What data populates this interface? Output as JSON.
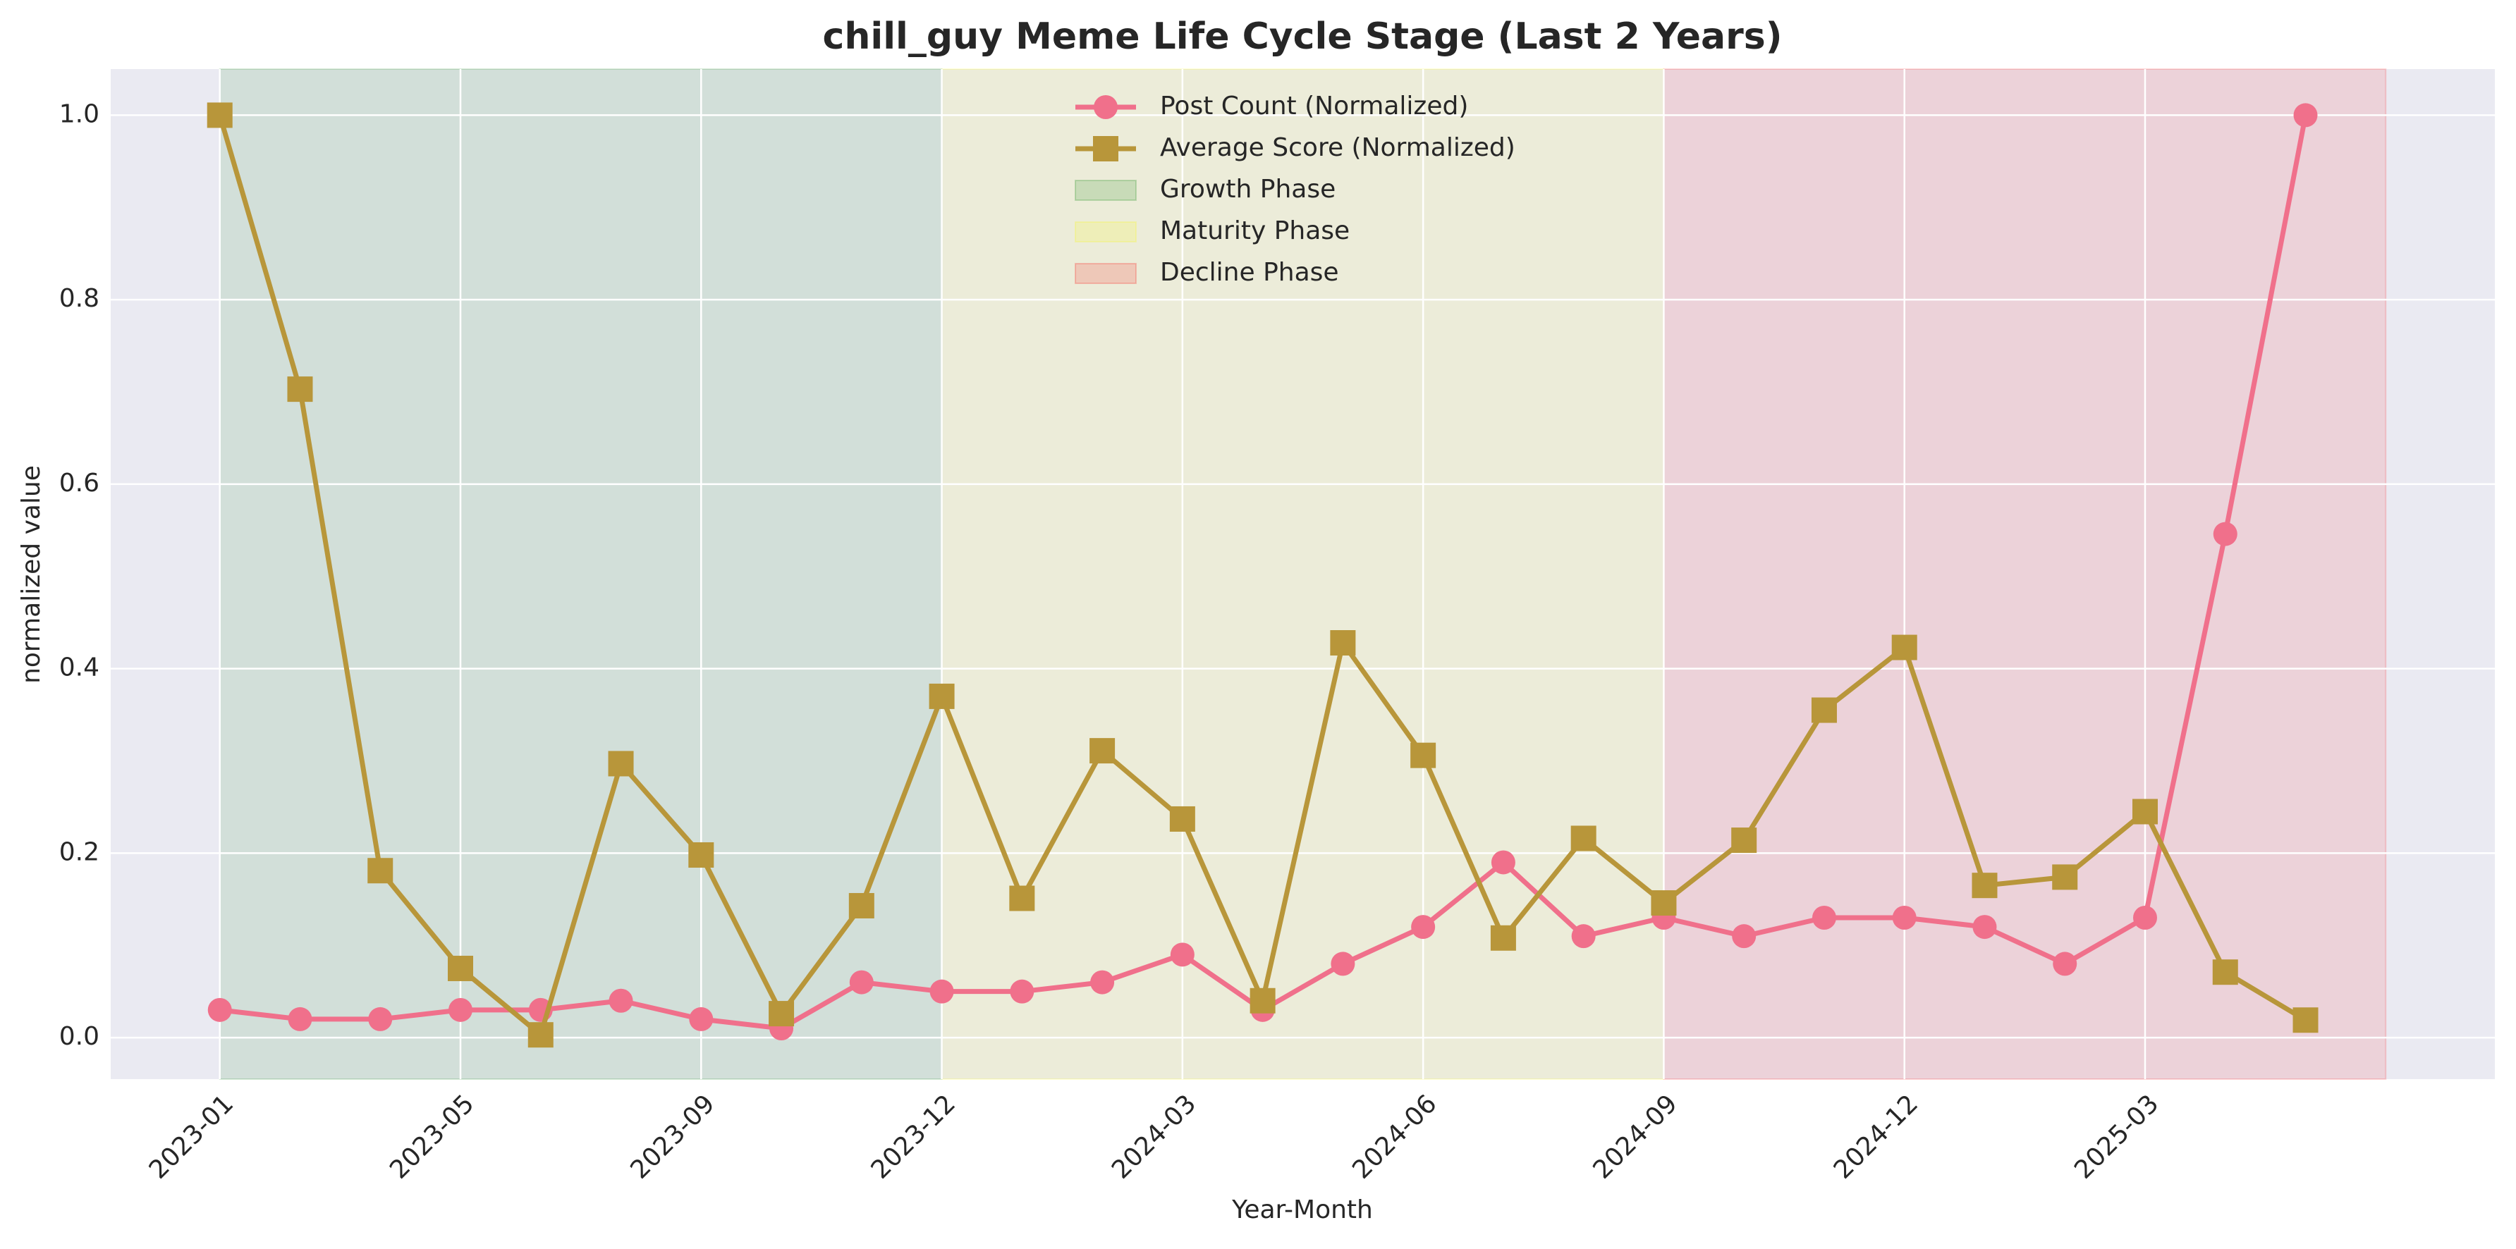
{
  "chart_data": {
    "type": "line",
    "title": "chill_guy Meme Life Cycle Stage (Last 2 Years)",
    "x_label": "Year-Month",
    "y_label": "normalized value",
    "categories": [
      "2023-01",
      null,
      null,
      "2023-05",
      null,
      null,
      "2023-09",
      null,
      null,
      "2023-12",
      null,
      null,
      "2024-03",
      null,
      null,
      "2024-06",
      null,
      null,
      "2024-09",
      null,
      null,
      "2024-12",
      null,
      null,
      "2025-03",
      null,
      null
    ],
    "series": [
      {
        "name": "Post Count (Normalized)",
        "color": "#f0708b",
        "marker": "circle",
        "values": [
          0.03,
          0.02,
          0.02,
          0.03,
          0.03,
          0.04,
          0.02,
          0.01,
          0.06,
          0.05,
          0.05,
          0.06,
          0.09,
          0.03,
          0.08,
          0.12,
          0.19,
          0.11,
          0.13,
          0.11,
          0.13,
          0.13,
          0.12,
          0.08,
          0.13,
          0.546,
          1.0
        ]
      },
      {
        "name": "Average Score (Normalized)",
        "color": "#b8963a",
        "marker": "square",
        "values": [
          1.0,
          0.703,
          0.181,
          0.075,
          0.003,
          0.297,
          0.198,
          0.026,
          0.143,
          0.37,
          0.151,
          0.311,
          0.237,
          0.04,
          0.428,
          0.306,
          0.108,
          0.216,
          0.146,
          0.214,
          0.355,
          0.423,
          0.165,
          0.174,
          0.245,
          0.071,
          0.019
        ]
      }
    ],
    "phases": [
      {
        "name": "Growth Phase",
        "color": "green",
        "start": 0,
        "end": 9
      },
      {
        "name": "Maturity Phase",
        "color": "yellow",
        "start": 9,
        "end": 18
      },
      {
        "name": "Decline Phase",
        "color": "red",
        "start": 18,
        "end": 27
      }
    ],
    "xlim": [
      -1.36,
      28.36
    ],
    "ylim": [
      -0.045,
      1.05
    ],
    "yticks": [
      {
        "value": 0,
        "label": "0.0"
      },
      0.2,
      0.4,
      0.6,
      0.8,
      {
        "value": 1,
        "label": "1.0"
      }
    ],
    "grid": true,
    "legend": "upper center"
  }
}
